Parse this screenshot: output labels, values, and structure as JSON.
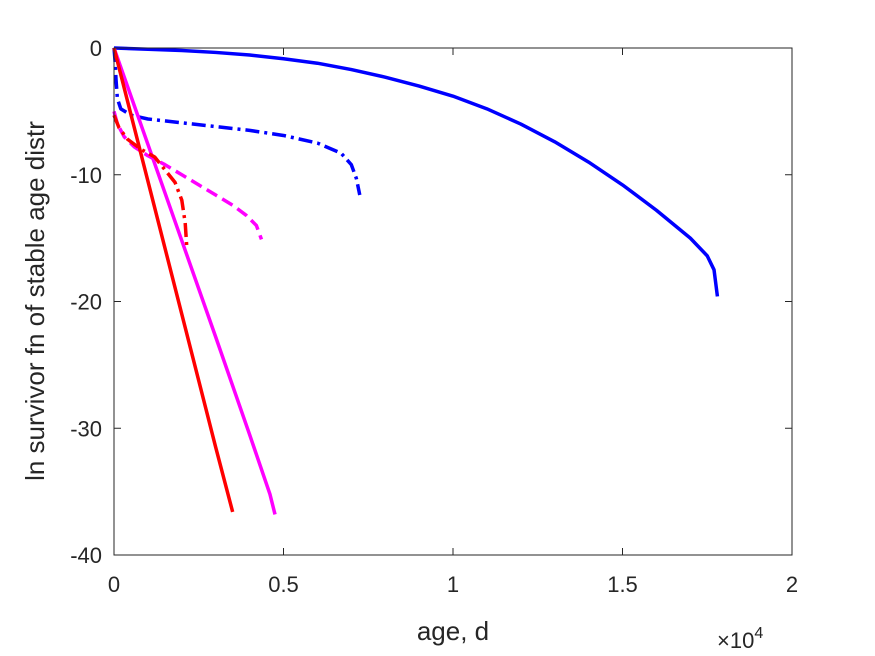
{
  "chart_data": {
    "type": "line",
    "title": "",
    "xlabel": "age, d",
    "ylabel": "ln survivor fn of stable age distr",
    "x_exponent_label": "×10",
    "x_exponent_power": "4",
    "xlim": [
      0,
      20000
    ],
    "ylim": [
      -40,
      0
    ],
    "xticks": [
      0,
      5000,
      10000,
      15000,
      20000
    ],
    "xtick_labels": [
      "0",
      "0.5",
      "1",
      "1.5",
      "2"
    ],
    "yticks": [
      0,
      -10,
      -20,
      -30,
      -40
    ],
    "ytick_labels": [
      "0",
      "-10",
      "-20",
      "-30",
      "-40"
    ],
    "grid": false,
    "legend": "none",
    "series": [
      {
        "color": "#0000ff",
        "style": "solid",
        "points": [
          [
            0,
            0
          ],
          [
            1000,
            -0.1
          ],
          [
            2000,
            -0.2
          ],
          [
            3000,
            -0.35
          ],
          [
            4000,
            -0.55
          ],
          [
            5000,
            -0.85
          ],
          [
            6000,
            -1.2
          ],
          [
            7000,
            -1.7
          ],
          [
            8000,
            -2.3
          ],
          [
            9000,
            -3.0
          ],
          [
            10000,
            -3.8
          ],
          [
            11000,
            -4.8
          ],
          [
            12000,
            -6.0
          ],
          [
            13000,
            -7.4
          ],
          [
            14000,
            -9.0
          ],
          [
            15000,
            -10.8
          ],
          [
            16000,
            -12.8
          ],
          [
            17000,
            -15.0
          ],
          [
            17500,
            -16.4
          ],
          [
            17700,
            -17.5
          ],
          [
            17800,
            -19.6
          ]
        ]
      },
      {
        "color": "#0000ff",
        "style": "dashdot",
        "points": [
          [
            0,
            0
          ],
          [
            30,
            -1
          ],
          [
            60,
            -2.5
          ],
          [
            100,
            -4.0
          ],
          [
            200,
            -4.8
          ],
          [
            500,
            -5.3
          ],
          [
            1000,
            -5.6
          ],
          [
            2000,
            -5.9
          ],
          [
            3000,
            -6.2
          ],
          [
            4000,
            -6.5
          ],
          [
            5000,
            -6.9
          ],
          [
            6000,
            -7.5
          ],
          [
            6700,
            -8.3
          ],
          [
            7000,
            -9.2
          ],
          [
            7150,
            -10.3
          ],
          [
            7250,
            -11.6
          ]
        ]
      },
      {
        "color": "#ff00ff",
        "style": "solid",
        "points": [
          [
            0,
            0
          ],
          [
            1000,
            -7.6
          ],
          [
            2000,
            -15.2
          ],
          [
            3000,
            -22.8
          ],
          [
            4000,
            -30.5
          ],
          [
            4600,
            -35.2
          ],
          [
            4750,
            -36.8
          ]
        ]
      },
      {
        "color": "#ff00ff",
        "style": "dashed",
        "points": [
          [
            0,
            -5
          ],
          [
            100,
            -6.0
          ],
          [
            300,
            -7.0
          ],
          [
            600,
            -7.8
          ],
          [
            1000,
            -8.5
          ],
          [
            1500,
            -9.2
          ],
          [
            2000,
            -10.0
          ],
          [
            2500,
            -10.8
          ],
          [
            3000,
            -11.6
          ],
          [
            3500,
            -12.4
          ],
          [
            3900,
            -13.2
          ],
          [
            4200,
            -14.0
          ],
          [
            4350,
            -15.1
          ]
        ]
      },
      {
        "color": "#ff0000",
        "style": "solid",
        "points": [
          [
            0,
            0
          ],
          [
            1000,
            -10.5
          ],
          [
            2000,
            -21.0
          ],
          [
            3000,
            -31.5
          ],
          [
            3500,
            -36.6
          ]
        ]
      },
      {
        "color": "#ff0000",
        "style": "dashdot",
        "points": [
          [
            0,
            -5.3
          ],
          [
            150,
            -6.3
          ],
          [
            400,
            -7.2
          ],
          [
            800,
            -8.0
          ],
          [
            1200,
            -8.6
          ],
          [
            1500,
            -9.6
          ],
          [
            1800,
            -10.6
          ],
          [
            2000,
            -12.0
          ],
          [
            2100,
            -13.8
          ],
          [
            2150,
            -15.8
          ]
        ]
      }
    ]
  }
}
